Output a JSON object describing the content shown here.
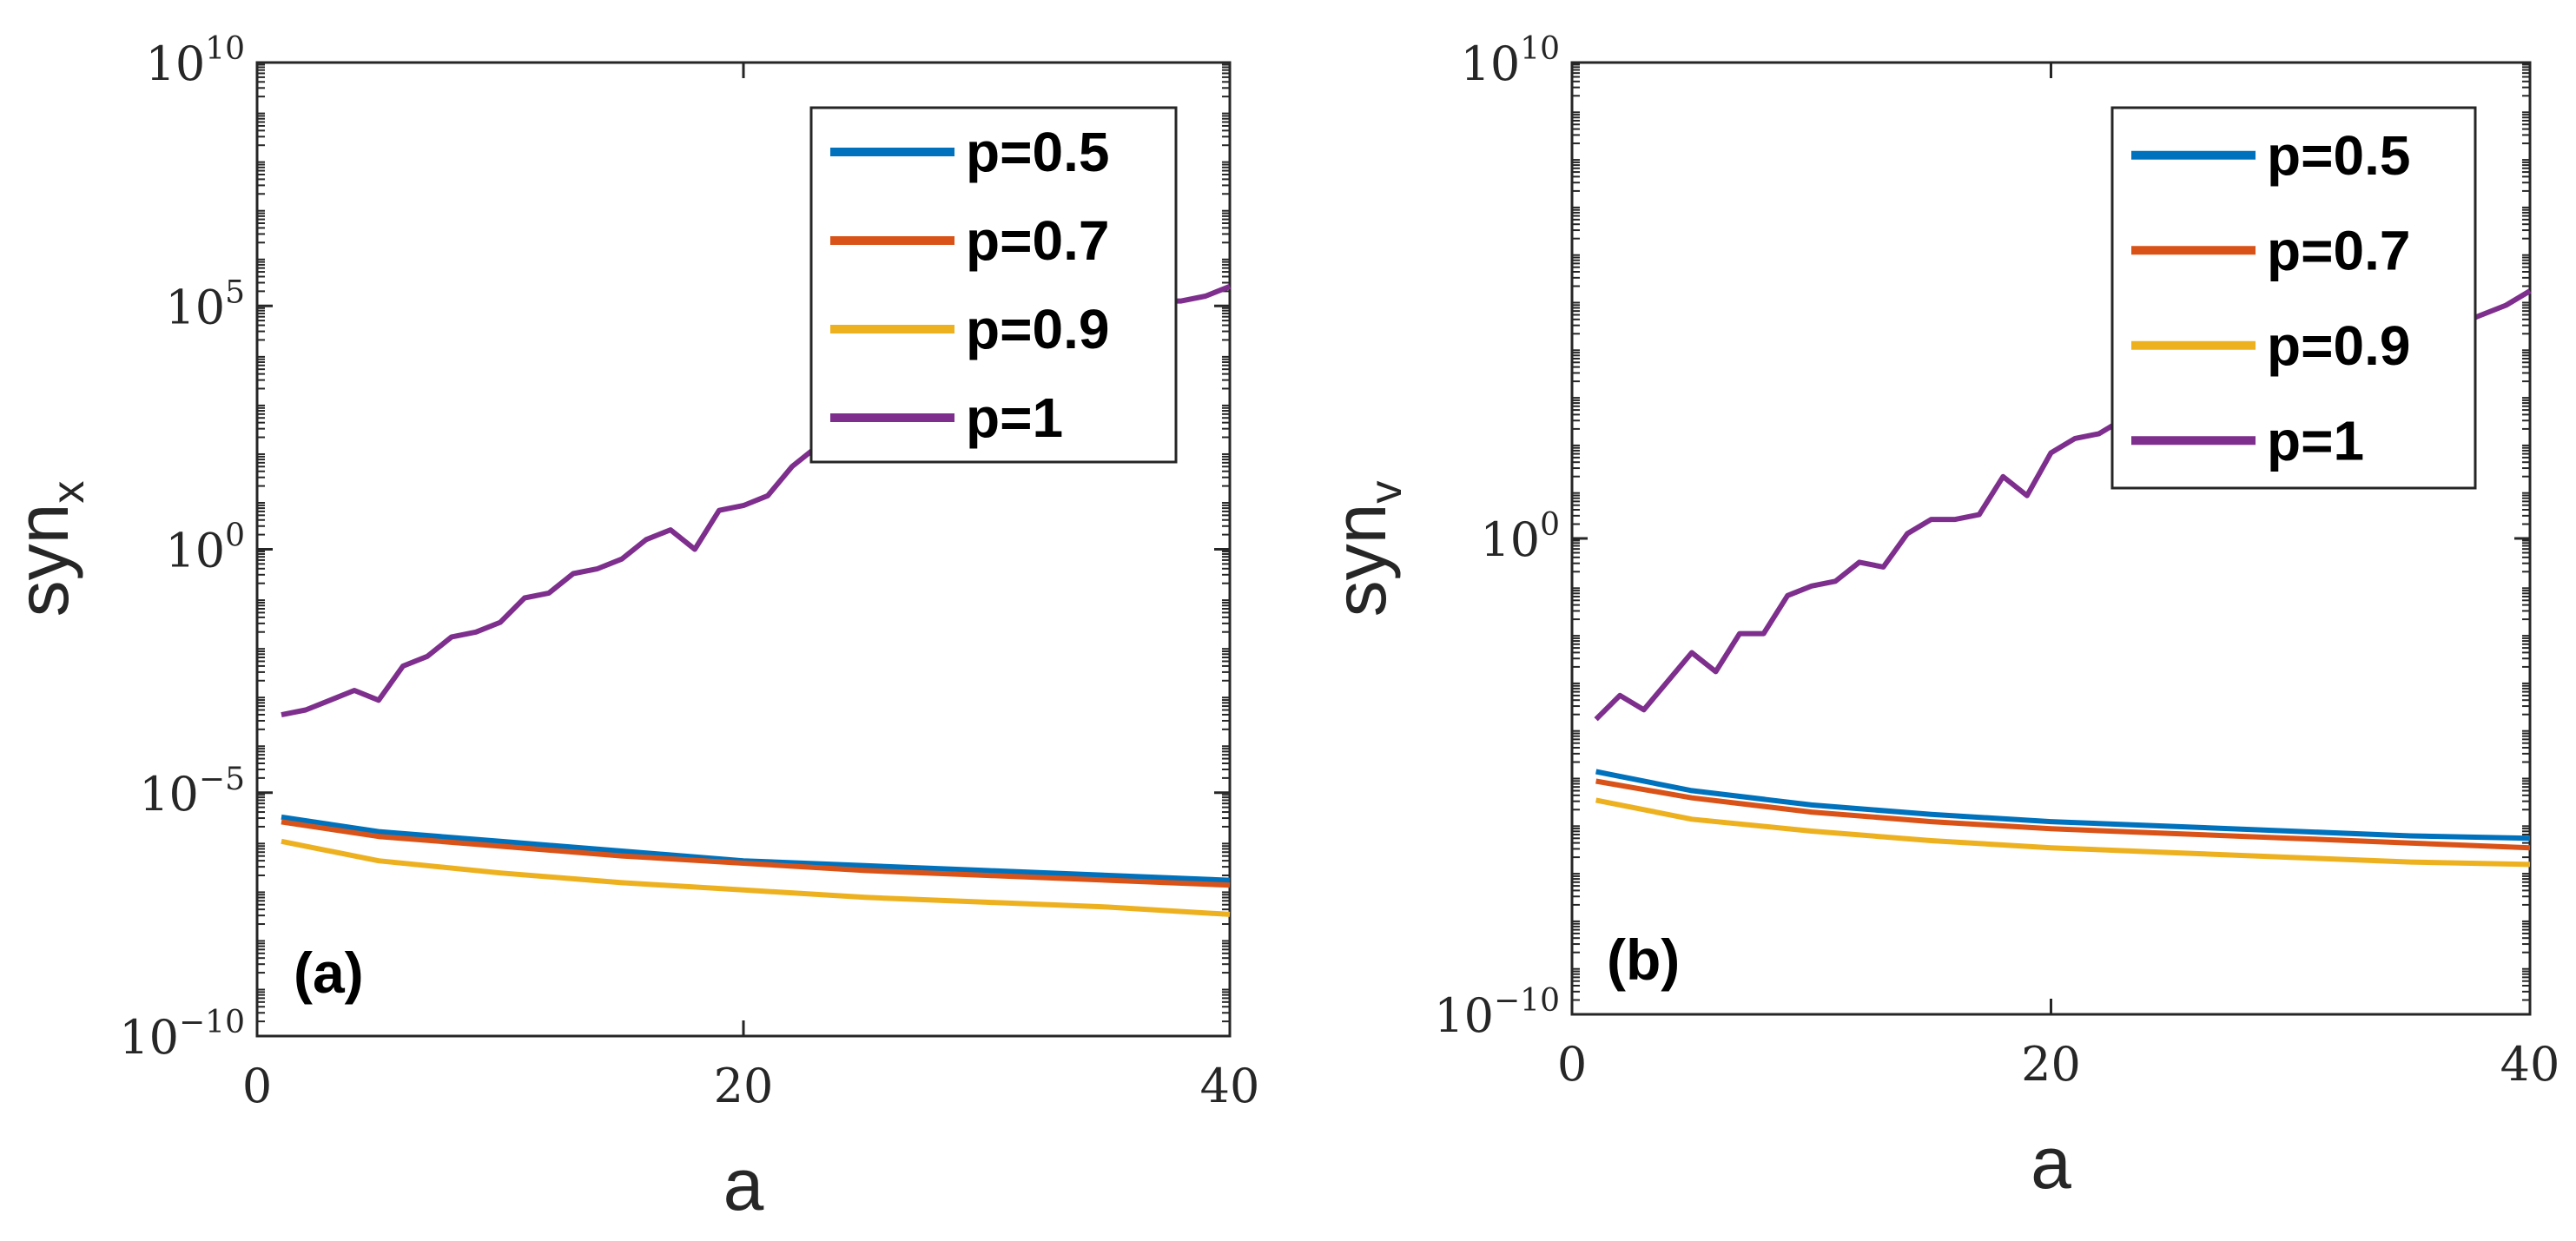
{
  "chart_data": [
    {
      "type": "line",
      "panel_label": "(a)",
      "xlabel": "a",
      "ylabel_main": "syn",
      "ylabel_sub": "x",
      "yscale": "log",
      "xlim": [
        0,
        40
      ],
      "ylim": [
        1e-10,
        10000000000.0
      ],
      "x_ticks": [
        0,
        20,
        40
      ],
      "y_ticks": [
        {
          "value": 10000000000.0,
          "base": "10",
          "exp": "10"
        },
        {
          "value": 100000.0,
          "base": "10",
          "exp": "5"
        },
        {
          "value": 1.0,
          "base": "10",
          "exp": "0"
        },
        {
          "value": 1e-05,
          "base": "10",
          "exp": "−5"
        },
        {
          "value": 1e-10,
          "base": "10",
          "exp": "−10"
        }
      ],
      "legend_position": "top-right",
      "series": [
        {
          "name": "p=0.5",
          "color": "#0072BD",
          "x": [
            1,
            5,
            10,
            15,
            20,
            25,
            30,
            35,
            40
          ],
          "log10": [
            -5.5,
            -5.8,
            -6.0,
            -6.2,
            -6.4,
            -6.5,
            -6.6,
            -6.7,
            -6.8
          ]
        },
        {
          "name": "p=0.7",
          "color": "#D95319",
          "x": [
            1,
            5,
            10,
            15,
            20,
            25,
            30,
            35,
            40
          ],
          "log10": [
            -5.6,
            -5.9,
            -6.1,
            -6.3,
            -6.45,
            -6.6,
            -6.7,
            -6.8,
            -6.9
          ]
        },
        {
          "name": "p=0.9",
          "color": "#EDB120",
          "x": [
            1,
            5,
            10,
            15,
            20,
            25,
            30,
            35,
            40
          ],
          "log10": [
            -6.0,
            -6.4,
            -6.65,
            -6.85,
            -7.0,
            -7.15,
            -7.25,
            -7.35,
            -7.5
          ]
        },
        {
          "name": "p=1",
          "color": "#7E2F8E",
          "x": [
            1,
            2,
            3,
            4,
            5,
            6,
            7,
            8,
            9,
            10,
            11,
            12,
            13,
            14,
            15,
            16,
            17,
            18,
            19,
            20,
            21,
            22,
            23,
            24,
            25,
            26,
            27,
            28,
            29,
            30,
            31,
            32,
            33,
            34,
            35,
            36,
            37,
            38,
            39,
            40
          ],
          "log10": [
            -3.4,
            -3.3,
            -3.1,
            -2.9,
            -3.1,
            -2.4,
            -2.2,
            -1.8,
            -1.7,
            -1.5,
            -1.0,
            -0.9,
            -0.5,
            -0.4,
            -0.2,
            0.2,
            0.4,
            0.0,
            0.8,
            0.9,
            1.1,
            1.7,
            2.1,
            2.6,
            2.9,
            3.2,
            3.4,
            3.7,
            3.9,
            4.1,
            4.3,
            4.5,
            4.7,
            4.8,
            4.9,
            5.0,
            5.1,
            5.1,
            5.2,
            5.4
          ]
        }
      ]
    },
    {
      "type": "line",
      "panel_label": "(b)",
      "xlabel": "a",
      "ylabel_main": "syn",
      "ylabel_sub": "v",
      "yscale": "log",
      "xlim": [
        0,
        40
      ],
      "ylim": [
        1e-10,
        10000000000.0
      ],
      "x_ticks": [
        0,
        20,
        40
      ],
      "y_ticks": [
        {
          "value": 10000000000.0,
          "base": "10",
          "exp": "10"
        },
        {
          "value": 1.0,
          "base": "10",
          "exp": "0"
        },
        {
          "value": 1e-10,
          "base": "10",
          "exp": "−10"
        }
      ],
      "legend_position": "top-right",
      "series": [
        {
          "name": "p=0.5",
          "color": "#0072BD",
          "x": [
            1,
            5,
            10,
            15,
            20,
            25,
            30,
            35,
            40
          ],
          "log10": [
            -4.9,
            -5.3,
            -5.6,
            -5.8,
            -5.95,
            -6.05,
            -6.15,
            -6.25,
            -6.3
          ]
        },
        {
          "name": "p=0.7",
          "color": "#D95319",
          "x": [
            1,
            5,
            10,
            15,
            20,
            25,
            30,
            35,
            40
          ],
          "log10": [
            -5.1,
            -5.45,
            -5.75,
            -5.95,
            -6.1,
            -6.2,
            -6.3,
            -6.4,
            -6.5
          ]
        },
        {
          "name": "p=0.9",
          "color": "#EDB120",
          "x": [
            1,
            5,
            10,
            15,
            20,
            25,
            30,
            35,
            40
          ],
          "log10": [
            -5.5,
            -5.9,
            -6.15,
            -6.35,
            -6.5,
            -6.6,
            -6.7,
            -6.8,
            -6.85
          ]
        },
        {
          "name": "p=1",
          "color": "#7E2F8E",
          "x": [
            1,
            2,
            3,
            4,
            5,
            6,
            7,
            8,
            9,
            10,
            11,
            12,
            13,
            14,
            15,
            16,
            17,
            18,
            19,
            20,
            21,
            22,
            23,
            24,
            25,
            26,
            27,
            28,
            29,
            30,
            31,
            32,
            33,
            34,
            35,
            36,
            37,
            38,
            39,
            40
          ],
          "log10": [
            -3.8,
            -3.3,
            -3.6,
            -3.0,
            -2.4,
            -2.8,
            -2.0,
            -2.0,
            -1.2,
            -1.0,
            -0.9,
            -0.5,
            -0.6,
            0.1,
            0.4,
            0.4,
            0.5,
            1.3,
            0.9,
            1.8,
            2.1,
            2.2,
            2.5,
            2.6,
            2.7,
            2.9,
            3.0,
            3.2,
            3.3,
            3.5,
            3.7,
            3.8,
            3.9,
            4.0,
            4.2,
            4.3,
            4.5,
            4.7,
            4.9,
            5.2
          ]
        }
      ]
    }
  ]
}
